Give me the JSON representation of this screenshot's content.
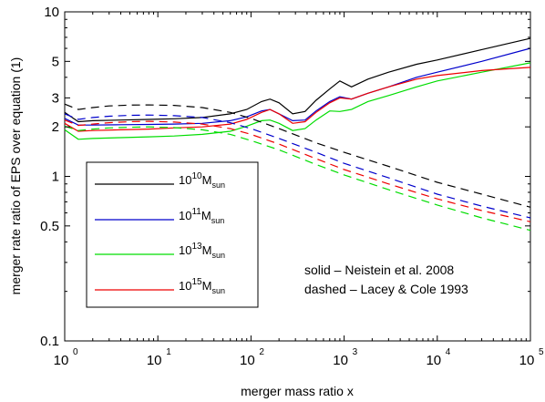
{
  "chart_data": {
    "type": "line",
    "title": "",
    "xlabel": "merger mass ratio x",
    "ylabel": "merger rate ratio of EPS over equation (1)",
    "xscale": "log",
    "yscale": "log",
    "xlim": [
      1,
      100000
    ],
    "ylim": [
      0.1,
      10
    ],
    "x_ticks": [
      {
        "value": 1,
        "base": "10",
        "exp": "0"
      },
      {
        "value": 10,
        "base": "10",
        "exp": "1"
      },
      {
        "value": 100,
        "base": "10",
        "exp": "2"
      },
      {
        "value": 1000,
        "base": "10",
        "exp": "3"
      },
      {
        "value": 10000,
        "base": "10",
        "exp": "4"
      },
      {
        "value": 100000,
        "base": "10",
        "exp": "5"
      }
    ],
    "y_ticks": [
      {
        "value": 0.1,
        "label": "0.1"
      },
      {
        "value": 0.5,
        "label": "0.5"
      },
      {
        "value": 1,
        "label": "1"
      },
      {
        "value": 2,
        "label": "2"
      },
      {
        "value": 3,
        "label": "3"
      },
      {
        "value": 5,
        "label": "5"
      },
      {
        "value": 10,
        "label": "10"
      }
    ],
    "grid": false,
    "legend_position": "center-left",
    "legend": [
      {
        "base": "10",
        "exp": "10",
        "unit": "M",
        "sub": "sun",
        "color": "#000000"
      },
      {
        "base": "10",
        "exp": "11",
        "unit": "M",
        "sub": "sun",
        "color": "#0000cc"
      },
      {
        "base": "10",
        "exp": "13",
        "unit": "M",
        "sub": "sun",
        "color": "#00dd00"
      },
      {
        "base": "10",
        "exp": "15",
        "unit": "M",
        "sub": "sun",
        "color": "#ee0000"
      }
    ],
    "annotations": [
      "solid – Neistein et al. 2008",
      "dashed – Lacey & Cole 1993"
    ],
    "series": [
      {
        "color": "#000000",
        "dash": "solid",
        "x": [
          1,
          1.4,
          2,
          4,
          8,
          15,
          30,
          60,
          90,
          130,
          160,
          200,
          280,
          380,
          500,
          700,
          900,
          1200,
          1800,
          3000,
          6000,
          10000,
          30000,
          100000
        ],
        "y": [
          2.45,
          2.15,
          2.18,
          2.2,
          2.22,
          2.24,
          2.28,
          2.4,
          2.55,
          2.85,
          2.95,
          2.8,
          2.4,
          2.48,
          2.9,
          3.4,
          3.8,
          3.5,
          3.9,
          4.3,
          4.8,
          5.1,
          5.9,
          6.9
        ]
      },
      {
        "color": "#0000cc",
        "dash": "solid",
        "x": [
          1,
          1.4,
          2,
          4,
          8,
          15,
          30,
          60,
          90,
          130,
          160,
          200,
          280,
          380,
          500,
          700,
          900,
          1200,
          1800,
          3000,
          6000,
          10000,
          30000,
          100000
        ],
        "y": [
          2.25,
          2.05,
          2.05,
          2.06,
          2.07,
          2.08,
          2.1,
          2.18,
          2.3,
          2.5,
          2.55,
          2.4,
          2.18,
          2.2,
          2.5,
          2.85,
          3.05,
          2.95,
          3.2,
          3.5,
          4.0,
          4.3,
          5.0,
          6.0
        ]
      },
      {
        "color": "#00dd00",
        "dash": "solid",
        "x": [
          1,
          1.4,
          2,
          4,
          8,
          15,
          30,
          60,
          90,
          130,
          160,
          200,
          280,
          380,
          500,
          700,
          900,
          1200,
          1800,
          3000,
          6000,
          10000,
          30000,
          100000
        ],
        "y": [
          1.92,
          1.68,
          1.7,
          1.72,
          1.74,
          1.76,
          1.8,
          1.88,
          2.02,
          2.18,
          2.2,
          2.1,
          1.9,
          1.95,
          2.2,
          2.5,
          2.48,
          2.55,
          2.85,
          3.1,
          3.5,
          3.8,
          4.3,
          4.9
        ]
      },
      {
        "color": "#ee0000",
        "dash": "solid",
        "x": [
          1,
          1.4,
          2,
          4,
          8,
          15,
          30,
          60,
          90,
          130,
          160,
          200,
          280,
          380,
          500,
          700,
          900,
          1200,
          1800,
          3000,
          6000,
          10000,
          30000,
          100000
        ],
        "y": [
          2.1,
          1.88,
          1.9,
          1.92,
          1.94,
          1.97,
          2.0,
          2.08,
          2.22,
          2.45,
          2.55,
          2.4,
          2.1,
          2.15,
          2.45,
          2.8,
          3.0,
          2.95,
          3.2,
          3.5,
          3.9,
          4.1,
          4.4,
          4.6
        ]
      },
      {
        "color": "#000000",
        "dash": "dashed",
        "x": [
          1,
          1.4,
          2,
          3,
          5,
          8,
          15,
          30,
          60,
          100,
          200,
          500,
          1000,
          3000,
          10000,
          30000,
          100000
        ],
        "y": [
          2.75,
          2.55,
          2.62,
          2.68,
          2.71,
          2.72,
          2.7,
          2.62,
          2.45,
          2.25,
          1.95,
          1.6,
          1.4,
          1.15,
          0.92,
          0.78,
          0.65
        ]
      },
      {
        "color": "#0000cc",
        "dash": "dashed",
        "x": [
          1,
          1.4,
          2,
          3,
          5,
          8,
          15,
          30,
          60,
          100,
          200,
          500,
          1000,
          3000,
          10000,
          30000,
          100000
        ],
        "y": [
          2.4,
          2.22,
          2.28,
          2.32,
          2.35,
          2.36,
          2.34,
          2.28,
          2.12,
          1.95,
          1.7,
          1.4,
          1.2,
          0.98,
          0.78,
          0.66,
          0.56
        ]
      },
      {
        "color": "#00dd00",
        "dash": "dashed",
        "x": [
          1,
          1.4,
          2,
          3,
          5,
          8,
          15,
          30,
          60,
          100,
          200,
          500,
          1000,
          3000,
          10000,
          30000,
          100000
        ],
        "y": [
          2.02,
          1.9,
          1.94,
          1.97,
          1.99,
          2.0,
          1.98,
          1.92,
          1.8,
          1.65,
          1.45,
          1.18,
          1.02,
          0.83,
          0.67,
          0.56,
          0.47
        ]
      },
      {
        "color": "#ee0000",
        "dash": "dashed",
        "x": [
          1,
          1.4,
          2,
          3,
          5,
          8,
          15,
          30,
          60,
          100,
          200,
          500,
          1000,
          3000,
          10000,
          30000,
          100000
        ],
        "y": [
          2.2,
          2.04,
          2.08,
          2.12,
          2.15,
          2.16,
          2.14,
          2.08,
          1.95,
          1.8,
          1.57,
          1.28,
          1.1,
          0.9,
          0.73,
          0.62,
          0.53
        ]
      }
    ]
  }
}
